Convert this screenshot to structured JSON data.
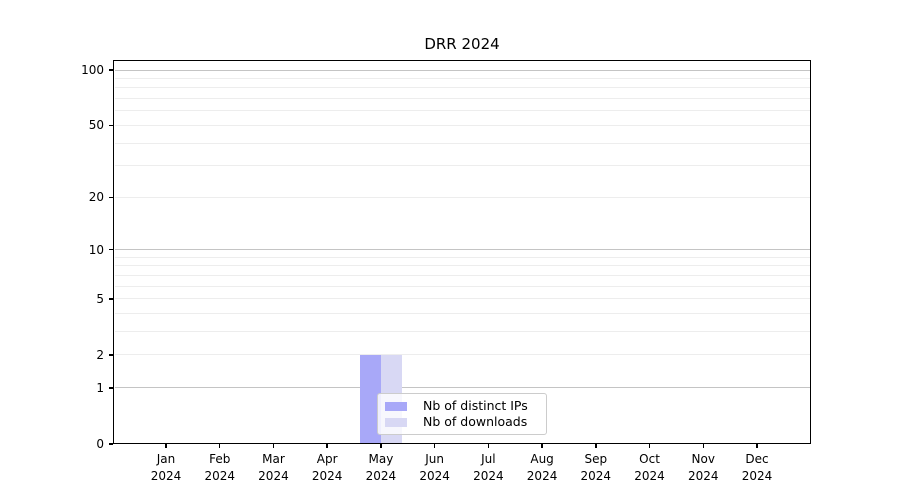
{
  "chart_data": {
    "type": "bar",
    "title": "DRR 2024",
    "x_tick_months": [
      "Jan",
      "Feb",
      "Mar",
      "Apr",
      "May",
      "Jun",
      "Jul",
      "Aug",
      "Sep",
      "Oct",
      "Nov",
      "Dec"
    ],
    "x_tick_year": "2024",
    "series": [
      {
        "name": "Nb of distinct IPs",
        "color": "#a8a8f8",
        "values": [
          0,
          0,
          0,
          0,
          2,
          0,
          0,
          0,
          0,
          0,
          0,
          0
        ]
      },
      {
        "name": "Nb of downloads",
        "color": "#d8d8f4",
        "values": [
          0,
          0,
          0,
          0,
          2,
          0,
          0,
          0,
          0,
          0,
          0,
          0
        ]
      }
    ],
    "y_scale": "log1p",
    "ylim": [
      0,
      113
    ],
    "y_ticks": [
      100,
      50,
      20,
      10,
      5,
      2,
      1,
      0
    ],
    "y_major_gridlines": [
      1,
      10,
      100
    ],
    "y_minor_gridlines": [
      2,
      3,
      4,
      5,
      6,
      7,
      8,
      9,
      20,
      30,
      40,
      50,
      60,
      70,
      80,
      90
    ],
    "grid": "horizontal",
    "legend_position": "inside-lower-center",
    "colors": {
      "axis": "#000000",
      "text": "#000000",
      "major_grid": "#c4c4c4",
      "minor_grid": "#ededed",
      "legend_border": "#cccccc"
    }
  }
}
